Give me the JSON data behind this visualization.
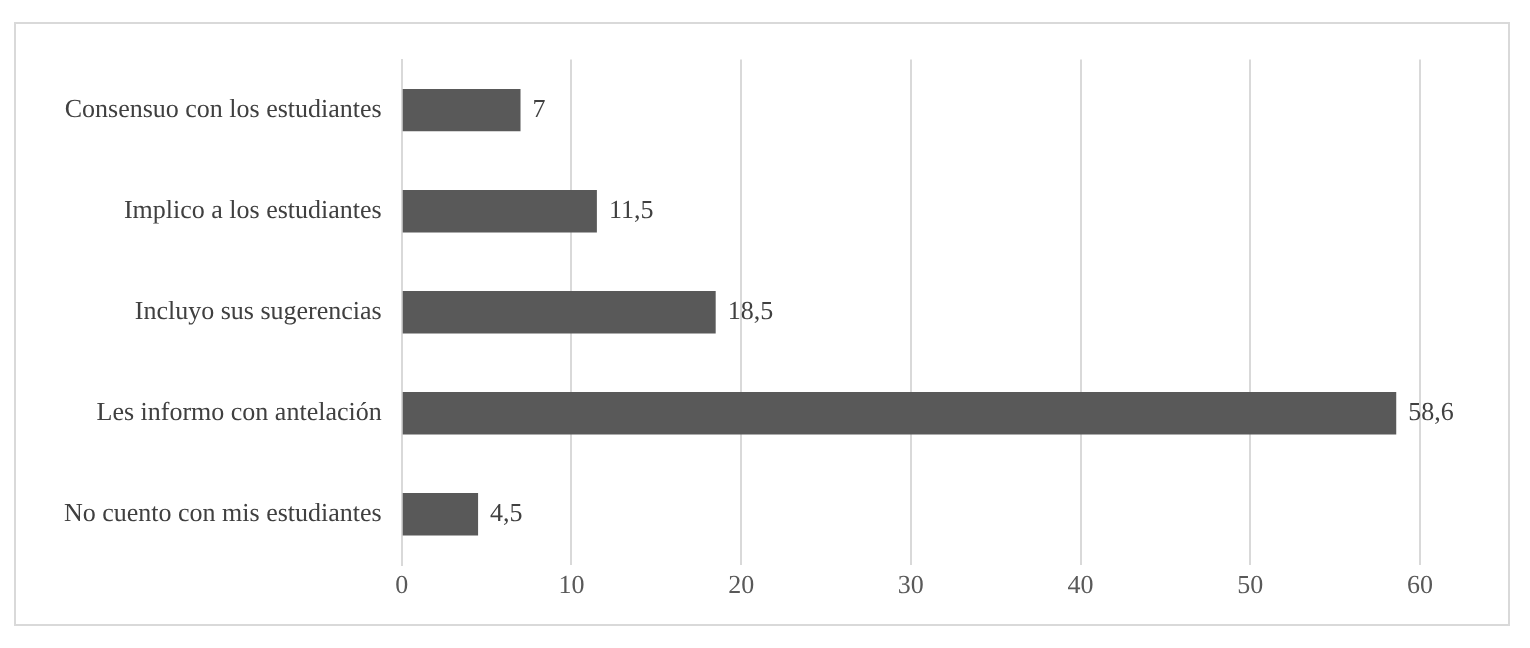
{
  "chart_data": {
    "type": "bar",
    "orientation": "horizontal",
    "categories": [
      "Consensuo con los estudiantes",
      "Implico a los estudiantes",
      "Incluyo sus sugerencias",
      "Les informo con antelación",
      "No cuento con mis estudiantes"
    ],
    "values": [
      7,
      11.5,
      18.5,
      58.6,
      4.5
    ],
    "value_labels": [
      "7",
      "11,5",
      "18,5",
      "58,6",
      "4,5"
    ],
    "color": "#595959",
    "xlim": [
      0,
      60
    ],
    "xticks": [
      0,
      10,
      20,
      30,
      40,
      50,
      60
    ],
    "grid": "x",
    "legend": false
  }
}
